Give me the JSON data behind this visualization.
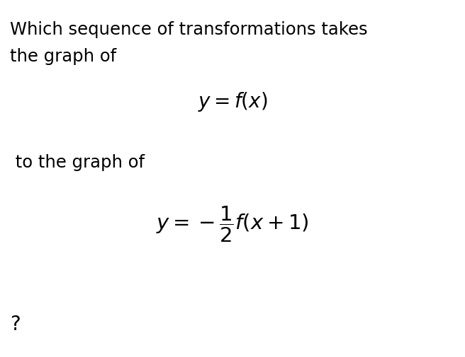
{
  "background_color": "#ffffff",
  "text_line1": "Which sequence of transformations takes",
  "text_line2": "the graph of",
  "math_eq1": "$y = f(x)$",
  "text_line3": " to the graph of",
  "math_eq2": "$y = -\\dfrac{1}{2}f(x + 1)$",
  "text_question": "?",
  "text_color": "#000000",
  "font_size_text": 17.5,
  "font_size_math1": 20,
  "font_size_math2": 21,
  "font_size_question": 20,
  "fig_width": 6.56,
  "fig_height": 5.05,
  "dpi": 100
}
